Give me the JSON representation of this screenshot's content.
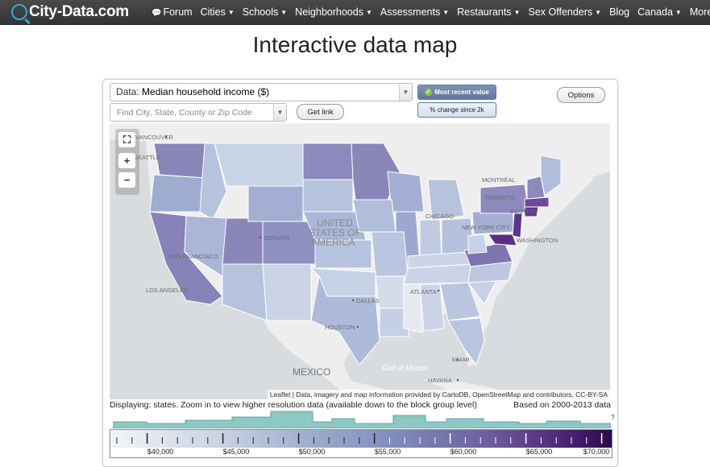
{
  "header": {
    "logo_text": "City-Data.com",
    "nav": [
      {
        "label": "Forum",
        "caret": false
      },
      {
        "label": "Cities",
        "caret": true
      },
      {
        "label": "Schools",
        "caret": true
      },
      {
        "label": "Neighborhoods",
        "caret": true
      },
      {
        "label": "Assessments",
        "caret": true
      },
      {
        "label": "Restaurants",
        "caret": true
      },
      {
        "label": "Sex Offenders",
        "caret": true
      },
      {
        "label": "Blog",
        "caret": false
      },
      {
        "label": "Canada",
        "caret": true
      },
      {
        "label": "More",
        "caret": true
      }
    ]
  },
  "page_title": "Interactive data map",
  "controls": {
    "data_prefix": "Data:",
    "data_value": "Median household income ($)",
    "search_placeholder": "Find City, State, County or Zip Code",
    "get_link": "Get link",
    "options": "Options",
    "most_recent": "Most recent value",
    "pct_change": "% change since 2k"
  },
  "map": {
    "labels": {
      "vancouver": "VANCOUVER",
      "seattle": "SEATTLE",
      "montreal": "MONTRÉAL",
      "toronto": "TORONTO",
      "boston": "BOSTON",
      "chicago": "CHICAGO",
      "new_york": "NEW YORK CITY",
      "washington": "WASHINGTON",
      "united": "UNITED",
      "states_of": "STATES OF",
      "america": "AMERICA",
      "denver": "DENVER",
      "san_francisco": "SAN FRANCISCO",
      "los_angeles": "LOS ANGELES",
      "atlanta": "ATLANTA",
      "dallas": "DALLAS",
      "houston": "HOUSTON",
      "miami": "MIAMI",
      "mexico": "MEXICO",
      "gulf": "Gulf of Mexico",
      "havana": "HAVANA"
    },
    "attribution": {
      "leaflet": "Leaflet",
      "text1": "| Data, imagery and map information provided by",
      "cartodb": "CartoDB",
      "osm": "OpenStreetMap",
      "text2": "and contributors,",
      "license": "CC-BY-SA"
    },
    "zoom": {
      "fit": "⛶",
      "in": "+",
      "out": "−"
    },
    "colors": {
      "water": "#d9dcdf",
      "land": "#eeeeee",
      "border": "#ffffff"
    }
  },
  "status": {
    "displaying": "Displaying: states. Zoom in to view higher resolution data (available down to the block group level)",
    "based_on": "Based on 2000-2013 data",
    "help": "?"
  },
  "legend": {
    "tick_labels": [
      "$40,000",
      "$45,000",
      "$50,000",
      "$55,000",
      "$60,000",
      "$65,000",
      "$70,000"
    ],
    "histogram_color": "#8ec8c4"
  }
}
